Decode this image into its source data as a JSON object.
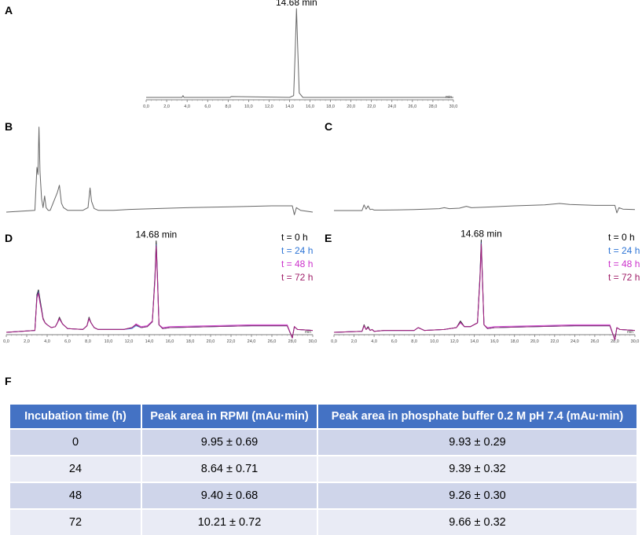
{
  "panel_labels": {
    "A": "A",
    "B": "B",
    "C": "C",
    "D": "D",
    "E": "E",
    "F": "F"
  },
  "colors": {
    "t0": "#000000",
    "t24": "#2e75d6",
    "t48": "#cc33cc",
    "t72": "#a0206a",
    "trace": "#666666",
    "table_header": "#4472c4",
    "row_dark": "#cfd5ea",
    "row_light": "#e9ebf5"
  },
  "chart_data": [
    {
      "id": "A",
      "type": "line",
      "title": "",
      "xlabel": "",
      "ylabel": "",
      "unit_label": "min",
      "xlim": [
        0,
        30
      ],
      "xticks": [
        "0,0",
        "2,0",
        "4,0",
        "6,0",
        "8,0",
        "10,0",
        "12,0",
        "14,0",
        "16,0",
        "18,0",
        "20,0",
        "22,0",
        "24,0",
        "26,0",
        "28,0",
        "30,0"
      ],
      "annotation": "14.68 min",
      "series": [
        {
          "x": [
            0,
            3.5,
            3.6,
            3.7,
            8.2,
            8.3,
            14.0,
            14.4,
            14.55,
            14.68,
            14.8,
            14.95,
            15.3,
            16,
            22,
            30
          ],
          "y": [
            0,
            0,
            0.02,
            0,
            0,
            0.01,
            0,
            0.02,
            0.5,
            1.0,
            0.55,
            0.05,
            0,
            0,
            0,
            0
          ]
        }
      ]
    },
    {
      "id": "B",
      "type": "line",
      "title": "",
      "xlabel": "",
      "ylabel": "",
      "xlim": [
        0,
        30
      ],
      "series": [
        {
          "x": [
            0,
            2.8,
            3.0,
            3.1,
            3.2,
            3.3,
            3.45,
            3.6,
            3.75,
            3.9,
            4.1,
            4.3,
            5.0,
            5.2,
            5.4,
            5.6,
            6.0,
            7.5,
            8.0,
            8.2,
            8.35,
            8.6,
            9.0,
            10.5,
            12,
            15,
            18,
            22,
            26,
            28.0,
            28.2,
            28.4,
            28.8,
            30
          ],
          "y": [
            0,
            0.02,
            0.5,
            0.42,
            0.95,
            0.45,
            0.15,
            0.05,
            0.18,
            0.05,
            0.02,
            0.02,
            0.22,
            0.3,
            0.1,
            0.05,
            0.02,
            0.02,
            0.05,
            0.27,
            0.12,
            0.04,
            0.02,
            0.02,
            0.03,
            0.04,
            0.05,
            0.06,
            0.07,
            0.07,
            -0.03,
            0.05,
            0.02,
            0.0
          ]
        }
      ]
    },
    {
      "id": "C",
      "type": "line",
      "title": "",
      "xlabel": "",
      "ylabel": "",
      "xlim": [
        0,
        30
      ],
      "series": [
        {
          "x": [
            0,
            2.8,
            3.0,
            3.2,
            3.4,
            3.6,
            3.8,
            4.0,
            5.0,
            8.0,
            10.5,
            11.0,
            11.5,
            12.5,
            13.2,
            13.7,
            15,
            18,
            21,
            22.5,
            23.5,
            26,
            28.0,
            28.2,
            28.4,
            28.8,
            30
          ],
          "y": [
            0,
            0,
            0.12,
            0.03,
            0.1,
            0.02,
            0.03,
            0.01,
            0.01,
            0.02,
            0.04,
            0.06,
            0.04,
            0.05,
            0.09,
            0.06,
            0.07,
            0.1,
            0.12,
            0.15,
            0.13,
            0.11,
            0.11,
            -0.05,
            0.06,
            0.03,
            0.02
          ]
        }
      ]
    },
    {
      "id": "D",
      "type": "line",
      "title": "",
      "xlabel": "",
      "ylabel": "",
      "unit_label": "min",
      "xlim": [
        0,
        30
      ],
      "xticks": [
        "0,0",
        "2,0",
        "4,0",
        "6,0",
        "8,0",
        "10,0",
        "12,0",
        "14,0",
        "16,0",
        "18,0",
        "20,0",
        "22,0",
        "24,0",
        "26,0",
        "28,0",
        "30,0"
      ],
      "annotation": "14.68 min",
      "legend": [
        "t = 0 h",
        "t = 24 h",
        "t = 48 h",
        "t = 72 h"
      ],
      "series": [
        {
          "name": "t = 0 h",
          "x": [
            0,
            2.8,
            3.0,
            3.15,
            3.3,
            3.45,
            3.6,
            3.8,
            4.0,
            4.4,
            4.8,
            5.0,
            5.2,
            5.5,
            6.0,
            7.5,
            7.9,
            8.1,
            8.3,
            8.6,
            9.0,
            10.5,
            11.5,
            12.3,
            12.7,
            13.2,
            13.8,
            14.3,
            14.55,
            14.68,
            14.8,
            14.95,
            15.3,
            16,
            20,
            24,
            27.5,
            28.0,
            28.2,
            28.5,
            30
          ],
          "y": [
            0,
            0.02,
            0.4,
            0.45,
            0.35,
            0.25,
            0.15,
            0.1,
            0.08,
            0.05,
            0.06,
            0.1,
            0.16,
            0.09,
            0.04,
            0.03,
            0.07,
            0.16,
            0.1,
            0.05,
            0.03,
            0.03,
            0.03,
            0.05,
            0.08,
            0.05,
            0.06,
            0.12,
            0.6,
            0.97,
            0.6,
            0.08,
            0.04,
            0.05,
            0.06,
            0.07,
            0.07,
            -0.06,
            0.06,
            0.03,
            0.02
          ]
        },
        {
          "name": "t = 24 h",
          "x": [
            0,
            2.8,
            3.0,
            3.15,
            3.3,
            3.45,
            3.6,
            3.8,
            4.0,
            4.4,
            4.8,
            5.0,
            5.2,
            5.5,
            6.0,
            7.5,
            7.9,
            8.1,
            8.3,
            8.6,
            9.0,
            10.5,
            11.5,
            12.3,
            12.7,
            13.2,
            13.8,
            14.3,
            14.55,
            14.68,
            14.8,
            14.95,
            15.3,
            16,
            20,
            24,
            27.5,
            28.0,
            28.2,
            28.5,
            30
          ],
          "y": [
            0,
            0.02,
            0.38,
            0.43,
            0.33,
            0.24,
            0.14,
            0.1,
            0.08,
            0.05,
            0.06,
            0.1,
            0.15,
            0.09,
            0.04,
            0.03,
            0.07,
            0.15,
            0.1,
            0.05,
            0.03,
            0.03,
            0.03,
            0.04,
            0.07,
            0.05,
            0.06,
            0.11,
            0.58,
            0.93,
            0.58,
            0.08,
            0.04,
            0.05,
            0.06,
            0.07,
            0.07,
            -0.06,
            0.06,
            0.03,
            0.02
          ]
        },
        {
          "name": "t = 48 h",
          "x": [
            0,
            2.8,
            3.0,
            3.15,
            3.3,
            3.45,
            3.6,
            3.8,
            4.0,
            4.4,
            4.8,
            5.0,
            5.2,
            5.5,
            6.0,
            7.5,
            7.9,
            8.1,
            8.3,
            8.6,
            9.0,
            10.5,
            11.5,
            12.3,
            12.7,
            13.2,
            13.8,
            14.3,
            14.55,
            14.68,
            14.8,
            14.95,
            15.3,
            16,
            20,
            24,
            27.5,
            28.0,
            28.2,
            28.5,
            30
          ],
          "y": [
            0,
            0.02,
            0.36,
            0.41,
            0.31,
            0.23,
            0.14,
            0.1,
            0.08,
            0.05,
            0.06,
            0.1,
            0.14,
            0.09,
            0.04,
            0.03,
            0.07,
            0.14,
            0.1,
            0.05,
            0.03,
            0.03,
            0.03,
            0.05,
            0.09,
            0.06,
            0.07,
            0.12,
            0.55,
            0.9,
            0.55,
            0.08,
            0.05,
            0.06,
            0.07,
            0.08,
            0.08,
            -0.06,
            0.06,
            0.03,
            0.02
          ]
        },
        {
          "name": "t = 72 h",
          "x": [
            0,
            2.8,
            3.0,
            3.15,
            3.3,
            3.45,
            3.6,
            3.8,
            4.0,
            4.4,
            4.8,
            5.0,
            5.2,
            5.5,
            6.0,
            7.5,
            7.9,
            8.1,
            8.3,
            8.6,
            9.0,
            10.5,
            11.5,
            12.3,
            12.7,
            13.2,
            13.8,
            14.3,
            14.55,
            14.68,
            14.8,
            14.95,
            15.3,
            16,
            20,
            24,
            27.5,
            28.0,
            28.2,
            28.5,
            30
          ],
          "y": [
            0,
            0.02,
            0.37,
            0.42,
            0.32,
            0.23,
            0.14,
            0.1,
            0.08,
            0.05,
            0.06,
            0.1,
            0.15,
            0.09,
            0.04,
            0.03,
            0.07,
            0.15,
            0.1,
            0.05,
            0.03,
            0.03,
            0.03,
            0.05,
            0.08,
            0.05,
            0.06,
            0.11,
            0.57,
            0.92,
            0.57,
            0.08,
            0.04,
            0.05,
            0.06,
            0.07,
            0.07,
            -0.06,
            0.06,
            0.03,
            0.02
          ]
        }
      ]
    },
    {
      "id": "E",
      "type": "line",
      "title": "",
      "xlabel": "",
      "ylabel": "",
      "unit_label": "min",
      "xlim": [
        0,
        30
      ],
      "xticks": [
        "0,0",
        "2,0",
        "4,0",
        "6,0",
        "8,0",
        "10,0",
        "12,0",
        "14,0",
        "16,0",
        "18,0",
        "20,0",
        "22,0",
        "24,0",
        "26,0",
        "28,0",
        "30,0"
      ],
      "annotation": "14.68 min",
      "legend": [
        "t = 0 h",
        "t = 24 h",
        "t = 48 h",
        "t = 72 h"
      ],
      "series": [
        {
          "name": "t = 0 h",
          "x": [
            0,
            2.8,
            3.0,
            3.2,
            3.4,
            3.6,
            3.8,
            4.0,
            5.0,
            8.0,
            8.4,
            9.0,
            11.0,
            12.2,
            12.6,
            13.0,
            13.6,
            14.3,
            14.55,
            14.68,
            14.8,
            14.95,
            15.3,
            16,
            20,
            24,
            27.5,
            28.0,
            28.2,
            28.5,
            30
          ],
          "y": [
            0,
            0.01,
            0.08,
            0.03,
            0.06,
            0.02,
            0.03,
            0.01,
            0.02,
            0.02,
            0.05,
            0.02,
            0.03,
            0.05,
            0.12,
            0.06,
            0.06,
            0.1,
            0.6,
            0.98,
            0.6,
            0.08,
            0.04,
            0.05,
            0.06,
            0.07,
            0.07,
            -0.08,
            0.05,
            0.03,
            0.02
          ]
        },
        {
          "name": "t = 24 h",
          "x": [
            0,
            2.8,
            3.0,
            3.2,
            3.4,
            3.6,
            3.8,
            4.0,
            5.0,
            8.0,
            8.4,
            9.0,
            11.0,
            12.2,
            12.6,
            13.0,
            13.6,
            14.3,
            14.55,
            14.68,
            14.8,
            14.95,
            15.3,
            16,
            20,
            24,
            27.5,
            28.0,
            28.2,
            28.5,
            30
          ],
          "y": [
            0,
            0.01,
            0.07,
            0.03,
            0.05,
            0.02,
            0.03,
            0.01,
            0.02,
            0.02,
            0.05,
            0.02,
            0.03,
            0.05,
            0.11,
            0.06,
            0.06,
            0.1,
            0.58,
            0.95,
            0.58,
            0.08,
            0.04,
            0.05,
            0.06,
            0.07,
            0.07,
            -0.08,
            0.05,
            0.03,
            0.02
          ]
        },
        {
          "name": "t = 48 h",
          "x": [
            0,
            2.8,
            3.0,
            3.2,
            3.4,
            3.6,
            3.8,
            4.0,
            5.0,
            8.0,
            8.4,
            9.0,
            11.0,
            12.2,
            12.6,
            13.0,
            13.6,
            14.3,
            14.55,
            14.68,
            14.8,
            14.95,
            15.3,
            16,
            20,
            24,
            27.5,
            28.0,
            28.2,
            28.5,
            30
          ],
          "y": [
            0,
            0.01,
            0.07,
            0.03,
            0.05,
            0.02,
            0.03,
            0.01,
            0.02,
            0.02,
            0.05,
            0.02,
            0.03,
            0.05,
            0.1,
            0.06,
            0.06,
            0.1,
            0.56,
            0.92,
            0.56,
            0.08,
            0.05,
            0.06,
            0.07,
            0.08,
            0.08,
            -0.08,
            0.05,
            0.03,
            0.02
          ]
        },
        {
          "name": "t = 72 h",
          "x": [
            0,
            2.8,
            3.0,
            3.2,
            3.4,
            3.6,
            3.8,
            4.0,
            5.0,
            8.0,
            8.4,
            9.0,
            11.0,
            12.2,
            12.6,
            13.0,
            13.6,
            14.3,
            14.55,
            14.68,
            14.8,
            14.95,
            15.3,
            16,
            20,
            24,
            27.5,
            28.0,
            28.2,
            28.5,
            30
          ],
          "y": [
            0,
            0.01,
            0.07,
            0.03,
            0.05,
            0.02,
            0.03,
            0.01,
            0.02,
            0.02,
            0.05,
            0.02,
            0.03,
            0.05,
            0.11,
            0.06,
            0.06,
            0.1,
            0.57,
            0.94,
            0.57,
            0.08,
            0.04,
            0.05,
            0.06,
            0.07,
            0.07,
            -0.08,
            0.05,
            0.03,
            0.02
          ]
        }
      ]
    },
    {
      "id": "F",
      "type": "table",
      "columns": [
        "Incubation time (h)",
        "Peak area in RPMI (mAu·min)",
        "Peak area in phosphate buffer 0.2 M pH 7.4 (mAu·min)"
      ],
      "rows": [
        [
          "0",
          "9.95 ± 0.69",
          "9.93 ± 0.29"
        ],
        [
          "24",
          "8.64 ± 0.71",
          "9.39 ± 0.32"
        ],
        [
          "48",
          "9.40 ± 0.68",
          "9.26 ± 0.30"
        ],
        [
          "72",
          "10.21 ± 0.72",
          "9.66 ± 0.32"
        ]
      ]
    }
  ]
}
